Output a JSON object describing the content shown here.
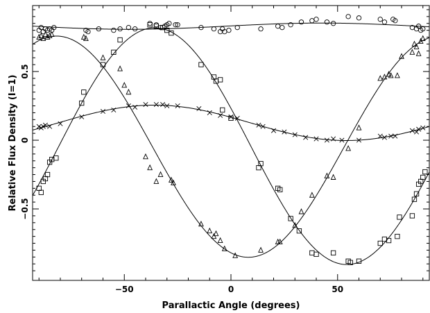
{
  "chart_data": {
    "type": "scatter",
    "title": "",
    "xlabel": "Parallactic Angle (degrees)",
    "ylabel": "Relative Flux Density (I=1)",
    "xlim": [
      -93,
      93
    ],
    "ylim": [
      -1.02,
      0.98
    ],
    "x_ticks": [
      -50,
      0,
      50
    ],
    "y_ticks": [
      -0.5,
      0,
      0.5
    ],
    "grid": false,
    "series": [
      {
        "marker": "circle",
        "points": [
          [
            -90,
            0.8
          ],
          [
            -89,
            0.82
          ],
          [
            -88,
            0.79
          ],
          [
            -87,
            0.81
          ],
          [
            -86,
            0.8
          ],
          [
            -85,
            0.81
          ],
          [
            -84,
            0.8
          ],
          [
            -83,
            0.82
          ],
          [
            -68,
            0.8
          ],
          [
            -67,
            0.79
          ],
          [
            -62,
            0.81
          ],
          [
            -55,
            0.8
          ],
          [
            -52,
            0.81
          ],
          [
            -48,
            0.82
          ],
          [
            -45,
            0.81
          ],
          [
            -38,
            0.85
          ],
          [
            -35,
            0.84
          ],
          [
            -33,
            0.82
          ],
          [
            -31,
            0.83
          ],
          [
            -30,
            0.84
          ],
          [
            -29,
            0.85
          ],
          [
            -26,
            0.84
          ],
          [
            -25,
            0.84
          ],
          [
            -14,
            0.82
          ],
          [
            -8,
            0.81
          ],
          [
            -5,
            0.79
          ],
          [
            -4,
            0.81
          ],
          [
            -3,
            0.79
          ],
          [
            -1,
            0.8
          ],
          [
            3,
            0.82
          ],
          [
            14,
            0.81
          ],
          [
            22,
            0.83
          ],
          [
            24,
            0.82
          ],
          [
            28,
            0.84
          ],
          [
            33,
            0.86
          ],
          [
            38,
            0.87
          ],
          [
            40,
            0.88
          ],
          [
            45,
            0.86
          ],
          [
            48,
            0.85
          ],
          [
            55,
            0.9
          ],
          [
            60,
            0.89
          ],
          [
            70,
            0.88
          ],
          [
            72,
            0.86
          ],
          [
            76,
            0.88
          ],
          [
            77,
            0.87
          ],
          [
            85,
            0.82
          ],
          [
            87,
            0.81
          ],
          [
            88,
            0.83
          ],
          [
            89,
            0.8
          ],
          [
            90,
            0.81
          ]
        ]
      },
      {
        "marker": "cross",
        "points": [
          [
            -90,
            0.1
          ],
          [
            -89,
            0.09
          ],
          [
            -88,
            0.1
          ],
          [
            -87,
            0.11
          ],
          [
            -85,
            0.1
          ],
          [
            -80,
            0.12
          ],
          [
            -70,
            0.17
          ],
          [
            -60,
            0.21
          ],
          [
            -55,
            0.22
          ],
          [
            -48,
            0.25
          ],
          [
            -45,
            0.24
          ],
          [
            -40,
            0.26
          ],
          [
            -35,
            0.26
          ],
          [
            -32,
            0.26
          ],
          [
            -30,
            0.25
          ],
          [
            -25,
            0.25
          ],
          [
            -15,
            0.23
          ],
          [
            -10,
            0.2
          ],
          [
            -5,
            0.18
          ],
          [
            0,
            0.17
          ],
          [
            3,
            0.16
          ],
          [
            13,
            0.11
          ],
          [
            15,
            0.1
          ],
          [
            20,
            0.07
          ],
          [
            25,
            0.06
          ],
          [
            30,
            0.04
          ],
          [
            35,
            0.02
          ],
          [
            40,
            0.01
          ],
          [
            45,
            0.0
          ],
          [
            48,
            0.01
          ],
          [
            52,
            0.0
          ],
          [
            60,
            0.0
          ],
          [
            70,
            0.03
          ],
          [
            72,
            0.02
          ],
          [
            75,
            0.03
          ],
          [
            77,
            0.03
          ],
          [
            85,
            0.07
          ],
          [
            87,
            0.06
          ],
          [
            88,
            0.08
          ],
          [
            90,
            0.09
          ]
        ]
      },
      {
        "marker": "square",
        "points": [
          [
            -90,
            -0.35
          ],
          [
            -89,
            -0.38
          ],
          [
            -88,
            -0.3
          ],
          [
            -87,
            -0.28
          ],
          [
            -86,
            -0.25
          ],
          [
            -85,
            -0.16
          ],
          [
            -84,
            -0.14
          ],
          [
            -82,
            -0.13
          ],
          [
            -70,
            0.27
          ],
          [
            -69,
            0.35
          ],
          [
            -60,
            0.55
          ],
          [
            -55,
            0.64
          ],
          [
            -52,
            0.73
          ],
          [
            -38,
            0.84
          ],
          [
            -35,
            0.83
          ],
          [
            -32,
            0.82
          ],
          [
            -30,
            0.8
          ],
          [
            -28,
            0.78
          ],
          [
            -14,
            0.55
          ],
          [
            -8,
            0.46
          ],
          [
            -7,
            0.43
          ],
          [
            -5,
            0.44
          ],
          [
            -4,
            0.22
          ],
          [
            0,
            0.16
          ],
          [
            13,
            -0.2
          ],
          [
            14,
            -0.17
          ],
          [
            22,
            -0.35
          ],
          [
            23,
            -0.36
          ],
          [
            28,
            -0.57
          ],
          [
            32,
            -0.66
          ],
          [
            38,
            -0.82
          ],
          [
            40,
            -0.83
          ],
          [
            48,
            -0.82
          ],
          [
            55,
            -0.88
          ],
          [
            56,
            -0.89
          ],
          [
            60,
            -0.88
          ],
          [
            70,
            -0.75
          ],
          [
            72,
            -0.72
          ],
          [
            74,
            -0.73
          ],
          [
            78,
            -0.7
          ],
          [
            79,
            -0.56
          ],
          [
            85,
            -0.55
          ],
          [
            86,
            -0.43
          ],
          [
            87,
            -0.39
          ],
          [
            88,
            -0.32
          ],
          [
            89,
            -0.3
          ],
          [
            90,
            -0.27
          ],
          [
            91,
            -0.23
          ]
        ]
      },
      {
        "marker": "triangle",
        "points": [
          [
            -90,
            0.75
          ],
          [
            -89,
            0.76
          ],
          [
            -88,
            0.74
          ],
          [
            -87,
            0.77
          ],
          [
            -86,
            0.75
          ],
          [
            -85,
            0.76
          ],
          [
            -84,
            0.77
          ],
          [
            -69,
            0.75
          ],
          [
            -68,
            0.74
          ],
          [
            -60,
            0.6
          ],
          [
            -52,
            0.52
          ],
          [
            -50,
            0.4
          ],
          [
            -48,
            0.35
          ],
          [
            -40,
            -0.12
          ],
          [
            -38,
            -0.2
          ],
          [
            -35,
            -0.3
          ],
          [
            -33,
            -0.25
          ],
          [
            -28,
            -0.29
          ],
          [
            -27,
            -0.31
          ],
          [
            -14,
            -0.61
          ],
          [
            -10,
            -0.66
          ],
          [
            -8,
            -0.7
          ],
          [
            -7,
            -0.68
          ],
          [
            -5,
            -0.73
          ],
          [
            -3,
            -0.79
          ],
          [
            2,
            -0.84
          ],
          [
            14,
            -0.8
          ],
          [
            22,
            -0.74
          ],
          [
            23,
            -0.74
          ],
          [
            30,
            -0.62
          ],
          [
            33,
            -0.52
          ],
          [
            38,
            -0.4
          ],
          [
            45,
            -0.26
          ],
          [
            48,
            -0.27
          ],
          [
            55,
            -0.06
          ],
          [
            60,
            0.09
          ],
          [
            70,
            0.45
          ],
          [
            72,
            0.46
          ],
          [
            74,
            0.48
          ],
          [
            75,
            0.47
          ],
          [
            78,
            0.47
          ],
          [
            80,
            0.61
          ],
          [
            85,
            0.64
          ],
          [
            86,
            0.7
          ],
          [
            87,
            0.68
          ],
          [
            88,
            0.63
          ],
          [
            89,
            0.72
          ],
          [
            90,
            0.74
          ]
        ]
      }
    ]
  }
}
